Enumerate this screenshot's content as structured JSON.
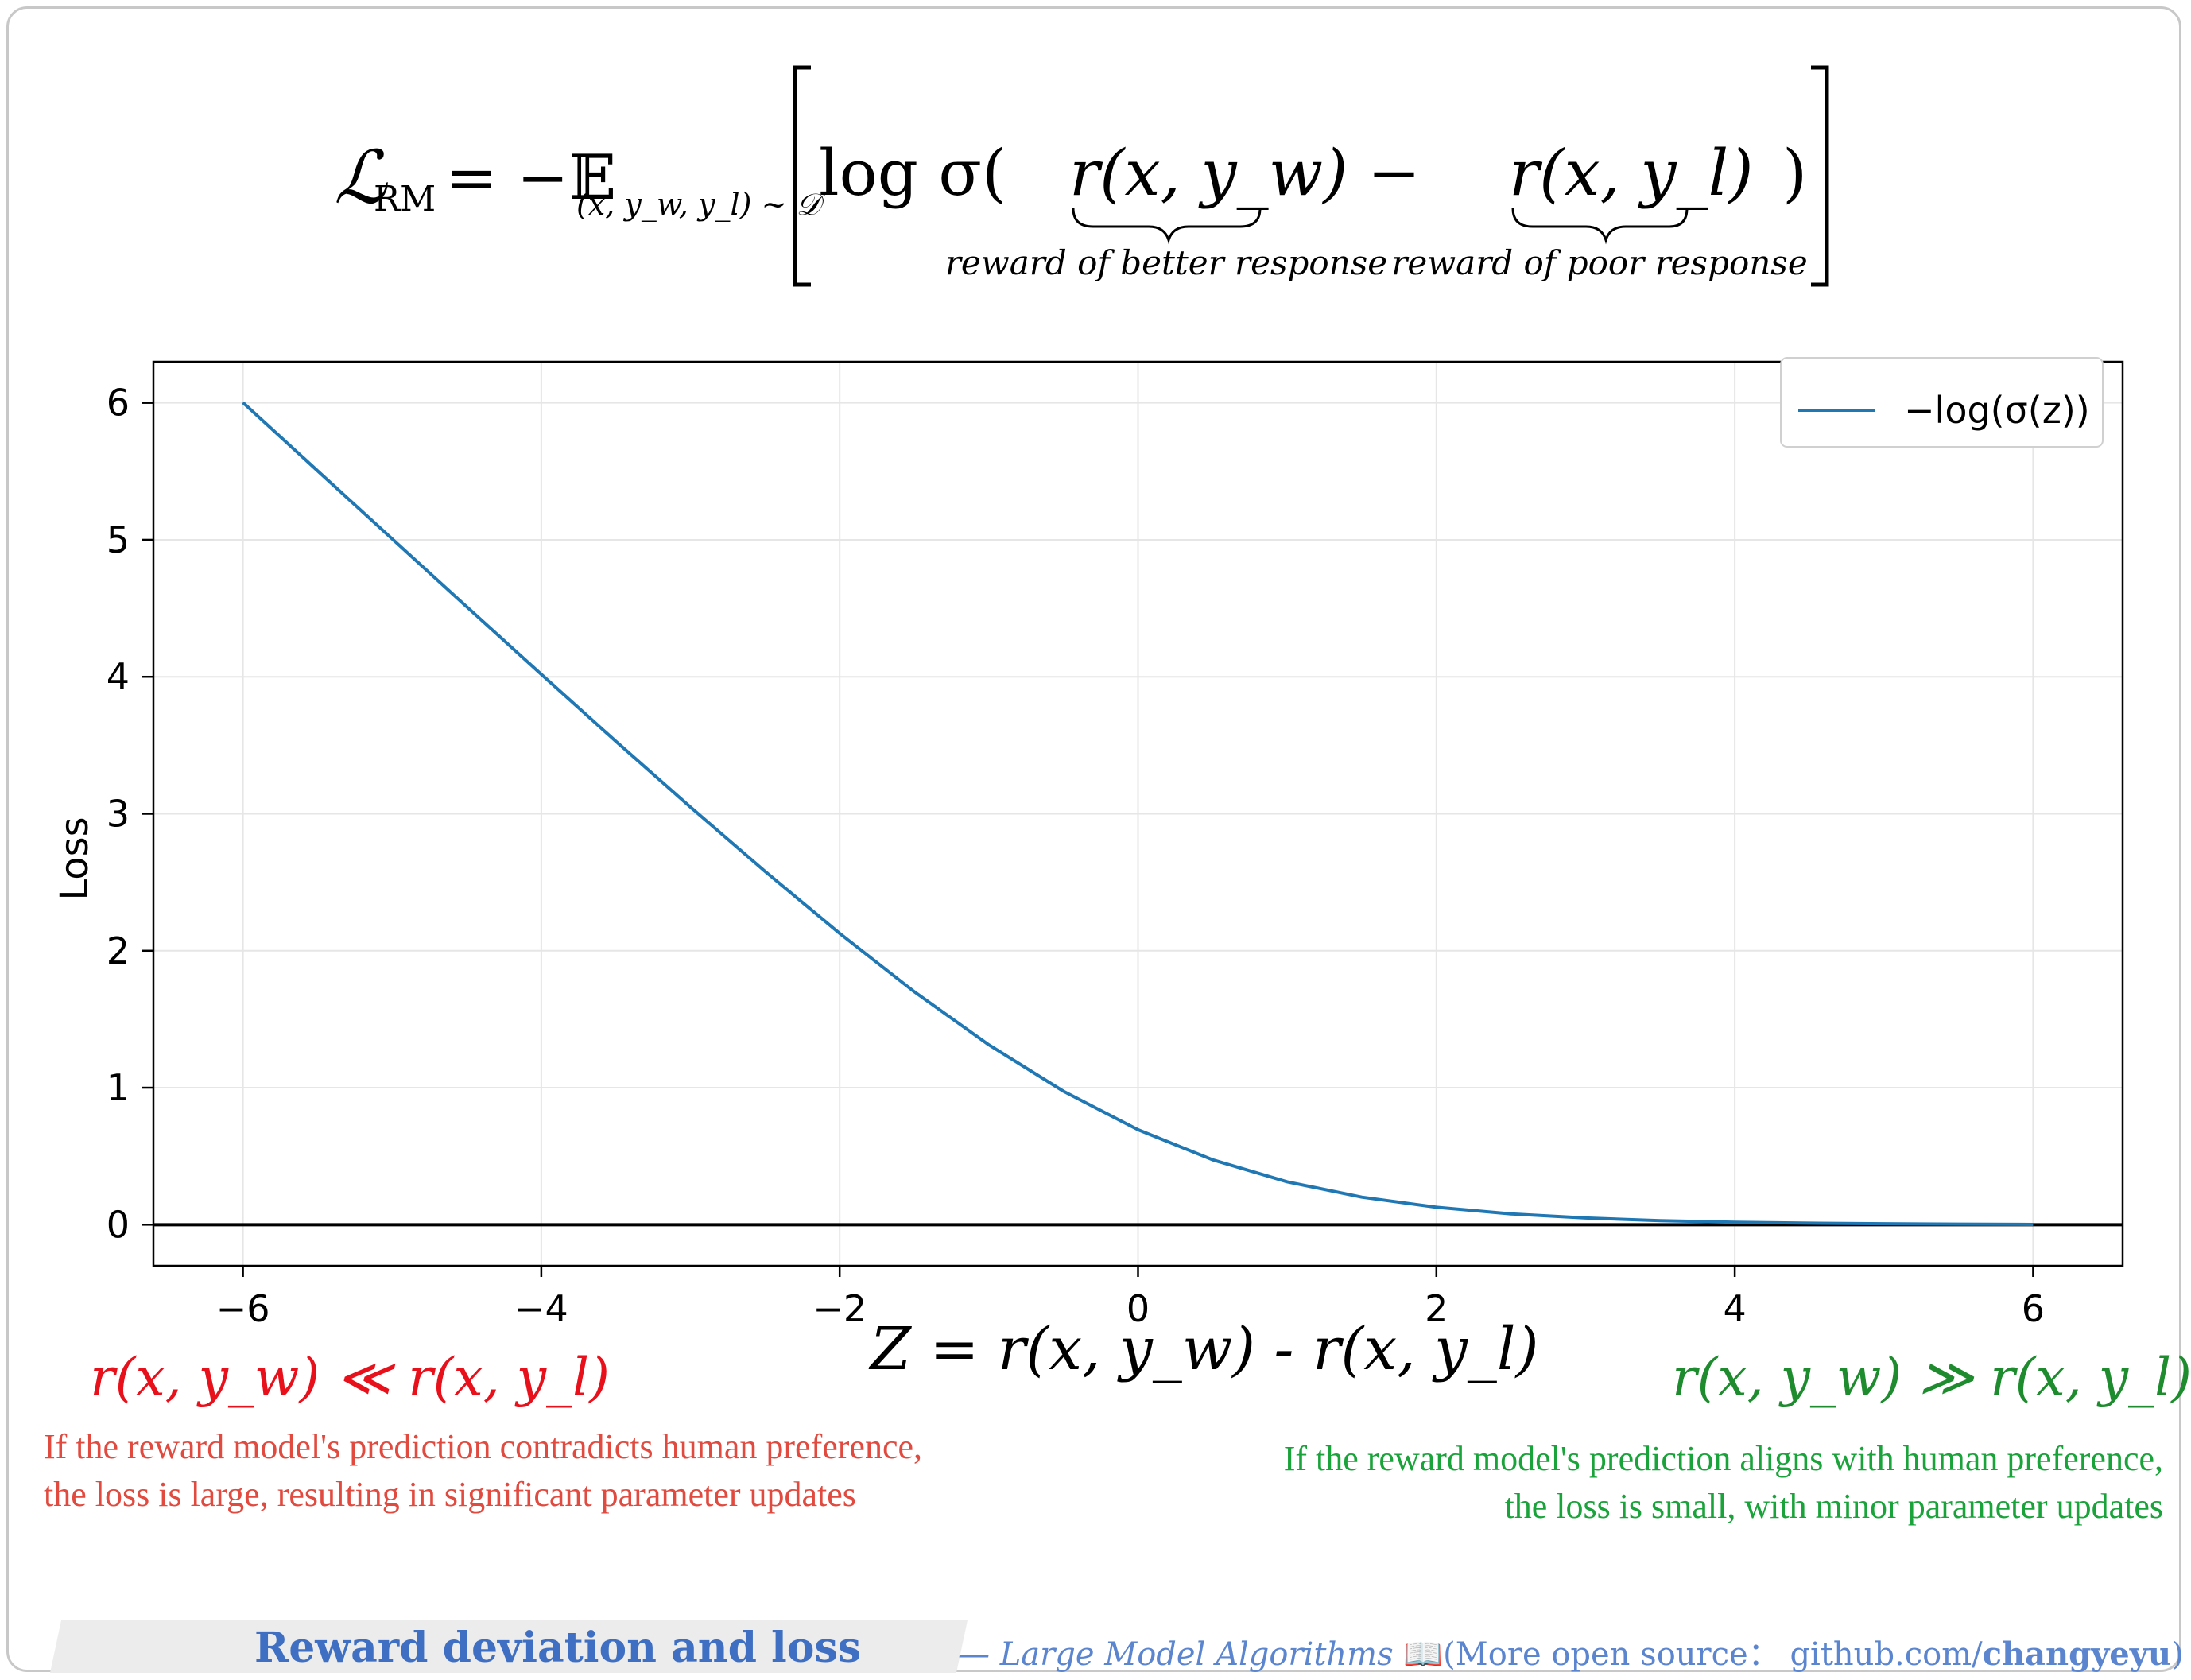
{
  "formula": {
    "lhs": "ℒ",
    "lhs_sub": "RM",
    "equals": "= −𝔼",
    "expect_sub": "(x, y_w, y_l) ~ 𝒟",
    "log_sigma": "log σ(",
    "term_better": "r(x, y_w)",
    "minus": "−",
    "term_poor": "r(x, y_l)",
    "close": ")",
    "brace_better_label": "reward of better response",
    "brace_poor_label": "reward of poor response"
  },
  "chart_data": {
    "type": "line",
    "title": "",
    "xlabel": "Z = r(x, y_w) - r(x, y_l)",
    "ylabel": "Loss",
    "xlim": [
      -6.6,
      6.6
    ],
    "ylim": [
      -0.3,
      6.3
    ],
    "xticks": [
      -6,
      -4,
      -2,
      0,
      2,
      4,
      6
    ],
    "xtick_labels": [
      "−6",
      "−4",
      "−2",
      "0",
      "2",
      "4",
      "6"
    ],
    "yticks": [
      0,
      1,
      2,
      3,
      4,
      5,
      6
    ],
    "ytick_labels": [
      "0",
      "1",
      "2",
      "3",
      "4",
      "5",
      "6"
    ],
    "grid": true,
    "legend_position": "top-right",
    "baseline_y": 0,
    "series": [
      {
        "name": "−log(σ(z))",
        "color": "#1f77b4",
        "x": [
          -6,
          -5.5,
          -5,
          -4.5,
          -4,
          -3.5,
          -3,
          -2.5,
          -2,
          -1.5,
          -1,
          -0.5,
          0,
          0.5,
          1,
          1.5,
          2,
          2.5,
          3,
          3.5,
          4,
          4.5,
          5,
          5.5,
          6
        ],
        "y": [
          6.002,
          5.504,
          5.007,
          4.511,
          4.018,
          3.529,
          3.049,
          2.579,
          2.127,
          1.701,
          1.313,
          0.974,
          0.693,
          0.474,
          0.313,
          0.201,
          0.127,
          0.079,
          0.049,
          0.03,
          0.018,
          0.011,
          0.007,
          0.004,
          0.002
        ]
      }
    ]
  },
  "annotations": {
    "left_condition": "r(x, y_w) ≪ r(x, y_l)",
    "left_condition_color": "#e8101a",
    "left_note_line1": "If the reward model's prediction contradicts human preference,",
    "left_note_line2": "the loss is large, resulting in significant parameter updates",
    "right_condition": "r(x, y_w) ≫ r(x, y_l)",
    "right_condition_color": "#1e8c2e",
    "right_note_line1": "If the reward model's prediction aligns with human preference,",
    "right_note_line2": "the loss is small, with minor parameter updates"
  },
  "footer": {
    "title": "Reward deviation and loss",
    "credit_prefix": "— Large Model Algorithms",
    "book_icon": "📖",
    "credit_mid": "(More open source：  github.com/",
    "credit_user": "changyeyu",
    "credit_suffix": ")"
  }
}
